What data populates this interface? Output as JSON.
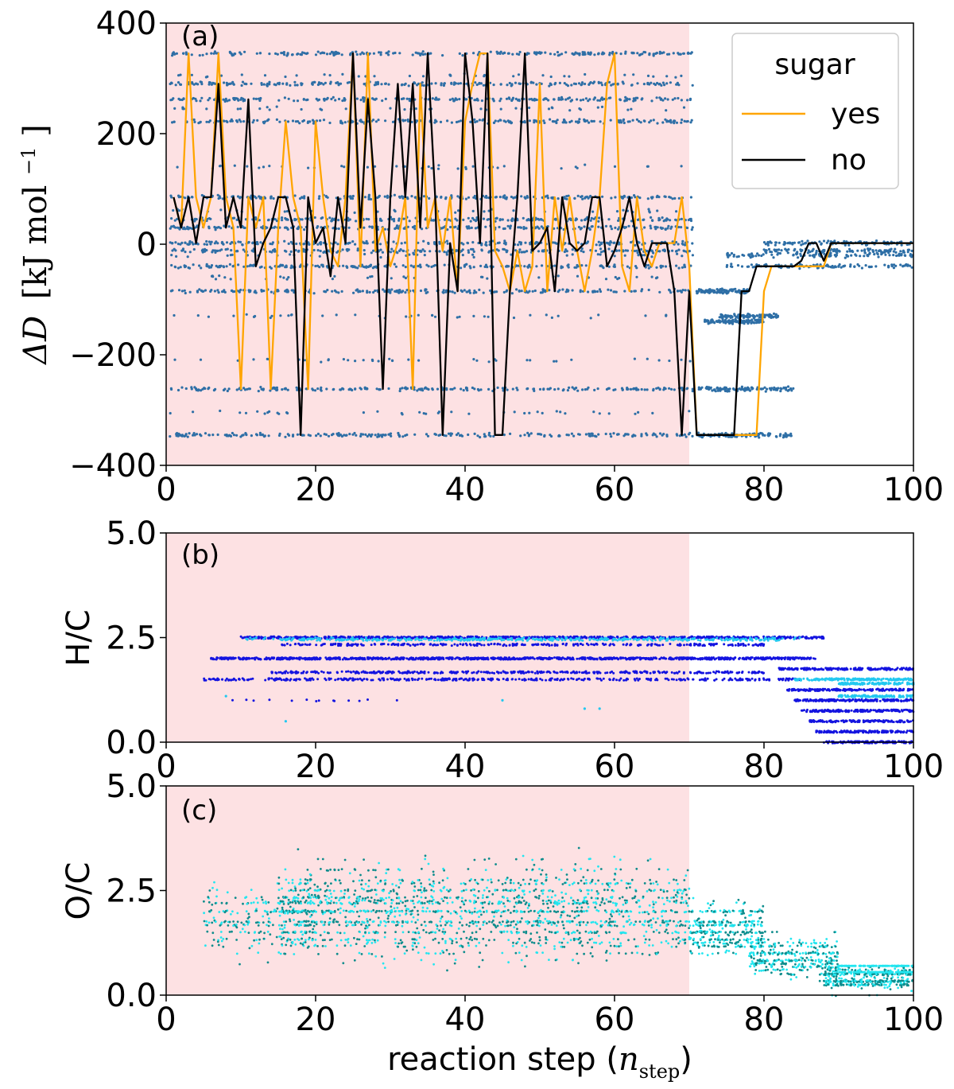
{
  "colors": {
    "shade": "#fde1e3",
    "scatter_a": "#2e6fa6",
    "yes": "#ffa500",
    "no": "#000000",
    "hc_dark": "#1414e0",
    "hc_light": "#22c8f0",
    "oc_dark": "#0e8c8c",
    "oc_light": "#22e6f0"
  },
  "chart_data": [
    {
      "panel": "(a)",
      "type": "line+scatter",
      "ylabel_main": "ΔD",
      "ylabel_units": "[kJ mol",
      "ylabel_exp": "−1",
      "ylabel_close": "]",
      "xlim": [
        0,
        100
      ],
      "ylim": [
        -400,
        400
      ],
      "x_ticks": [
        "0",
        "20",
        "40",
        "60",
        "80",
        "100"
      ],
      "y_ticks": [
        "400",
        "200",
        "0",
        "−200",
        "−400"
      ],
      "shaded_region": [
        0,
        70
      ],
      "legend": {
        "title": "sugar",
        "entries": [
          "yes",
          "no"
        ],
        "location": "upper right"
      },
      "scatter_levels_main": [
        345,
        290,
        262,
        222,
        85,
        45,
        30,
        2,
        -12,
        -40,
        -85,
        -262,
        -345
      ],
      "scatter_levels_sparse": [
        305,
        245,
        140,
        60,
        -20,
        -60,
        -130,
        -210,
        -305
      ],
      "late_scatter": [
        {
          "x0": 71,
          "x1": 84,
          "y": -345
        },
        {
          "x0": 71,
          "x1": 84,
          "y": -262
        },
        {
          "x0": 71,
          "x1": 78,
          "y": -85
        },
        {
          "x0": 72,
          "x1": 80,
          "y": -140
        },
        {
          "x0": 74,
          "x1": 82,
          "y": -130
        },
        {
          "x0": 75,
          "x1": 100,
          "y": -40
        },
        {
          "x0": 75,
          "x1": 100,
          "y": -20
        },
        {
          "x0": 80,
          "x1": 100,
          "y": 2
        },
        {
          "x0": 80,
          "x1": 100,
          "y": -12
        }
      ],
      "series": [
        {
          "name": "yes",
          "x": [
            1,
            2,
            3,
            4,
            5,
            6,
            7,
            8,
            9,
            10,
            11,
            12,
            13,
            14,
            15,
            16,
            17,
            18,
            19,
            20,
            21,
            22,
            23,
            24,
            25,
            26,
            27,
            28,
            29,
            30,
            31,
            32,
            33,
            34,
            35,
            36,
            37,
            38,
            39,
            40,
            41,
            42,
            43,
            44,
            45,
            46,
            47,
            48,
            49,
            50,
            51,
            52,
            53,
            54,
            55,
            56,
            57,
            58,
            59,
            60,
            61,
            62,
            63,
            64,
            65,
            66,
            67,
            68,
            69,
            70,
            71,
            72,
            73,
            74,
            75,
            76,
            77,
            78,
            79,
            80,
            81,
            82,
            83,
            84,
            85,
            86,
            87,
            88,
            89,
            90,
            91,
            92,
            93,
            94,
            95,
            96,
            97,
            98,
            99,
            100
          ],
          "y": [
            85,
            30,
            345,
            85,
            30,
            85,
            345,
            85,
            30,
            -262,
            85,
            30,
            85,
            -262,
            30,
            222,
            85,
            30,
            -262,
            222,
            85,
            -12,
            -40,
            85,
            345,
            -40,
            345,
            -12,
            30,
            -40,
            2,
            85,
            -262,
            290,
            30,
            85,
            -12,
            85,
            -85,
            222,
            290,
            345,
            345,
            -12,
            -40,
            -85,
            -12,
            -85,
            -40,
            290,
            -85,
            85,
            -12,
            85,
            -12,
            -85,
            -12,
            85,
            290,
            345,
            -40,
            -85,
            85,
            -12,
            -40,
            2,
            2,
            2,
            85,
            -40,
            -345,
            -345,
            -345,
            -345,
            -345,
            -345,
            -345,
            -345,
            -345,
            -85,
            -40,
            -40,
            -40,
            -40,
            -40,
            -40,
            -40,
            -40,
            2,
            2,
            2,
            2,
            2,
            2,
            2,
            2,
            2,
            2,
            2,
            2
          ]
        },
        {
          "name": "no",
          "x": [
            1,
            2,
            3,
            4,
            5,
            6,
            7,
            8,
            9,
            10,
            11,
            12,
            13,
            14,
            15,
            16,
            17,
            18,
            19,
            20,
            21,
            22,
            23,
            24,
            25,
            26,
            27,
            28,
            29,
            30,
            31,
            32,
            33,
            34,
            35,
            36,
            37,
            38,
            39,
            40,
            41,
            42,
            43,
            44,
            45,
            46,
            47,
            48,
            49,
            50,
            51,
            52,
            53,
            54,
            55,
            56,
            57,
            58,
            59,
            60,
            61,
            62,
            63,
            64,
            65,
            66,
            67,
            68,
            69,
            70,
            71,
            72,
            73,
            74,
            75,
            76,
            77,
            78,
            79,
            80,
            81,
            82,
            83,
            84,
            85,
            86,
            87,
            88,
            89,
            90,
            91,
            92,
            93,
            94,
            95,
            96,
            97,
            98,
            99,
            100
          ],
          "y": [
            85,
            30,
            85,
            2,
            85,
            85,
            290,
            30,
            85,
            30,
            262,
            -40,
            2,
            30,
            85,
            85,
            30,
            -345,
            85,
            2,
            30,
            -58,
            85,
            2,
            345,
            30,
            262,
            85,
            -262,
            85,
            290,
            85,
            290,
            30,
            345,
            85,
            -345,
            2,
            -85,
            345,
            222,
            2,
            345,
            -345,
            -345,
            -85,
            85,
            345,
            -12,
            2,
            30,
            -85,
            85,
            2,
            -12,
            2,
            85,
            85,
            -40,
            -12,
            30,
            85,
            2,
            -40,
            2,
            2,
            2,
            -85,
            -345,
            -85,
            -345,
            -345,
            -345,
            -345,
            -345,
            -345,
            -85,
            -85,
            -40,
            -40,
            -40,
            -40,
            -40,
            -40,
            -30,
            2,
            2,
            -30,
            2,
            2,
            2,
            2,
            2,
            2,
            2,
            2,
            2,
            2,
            2,
            2
          ]
        }
      ]
    },
    {
      "panel": "(b)",
      "type": "scatter",
      "ylabel": "H/C",
      "xlim": [
        0,
        100
      ],
      "ylim": [
        0,
        5
      ],
      "x_ticks": [
        "0",
        "20",
        "40",
        "60",
        "80",
        "100"
      ],
      "y_ticks": [
        "5.0",
        "2.5",
        "0.0"
      ],
      "shaded_region": [
        0,
        70
      ],
      "bands": [
        {
          "y": 2.5,
          "x0": 10,
          "x1": 88,
          "color": "dark",
          "density": 0.9
        },
        {
          "y": 2.45,
          "x0": 15,
          "x1": 82,
          "color": "light",
          "density": 0.4
        },
        {
          "y": 2.33,
          "x0": 15,
          "x1": 80,
          "color": "dark",
          "density": 0.35
        },
        {
          "y": 2.0,
          "x0": 6,
          "x1": 87,
          "color": "dark",
          "density": 1.0
        },
        {
          "y": 1.67,
          "x0": 14,
          "x1": 80,
          "color": "dark",
          "density": 0.45
        },
        {
          "y": 1.5,
          "x0": 5,
          "x1": 85,
          "color": "dark",
          "density": 0.4
        },
        {
          "y": 1.75,
          "x0": 82,
          "x1": 100,
          "color": "dark",
          "density": 0.8
        },
        {
          "y": 1.5,
          "x0": 84,
          "x1": 100,
          "color": "light",
          "density": 0.9
        },
        {
          "y": 1.4,
          "x0": 90,
          "x1": 100,
          "color": "light",
          "density": 1.0
        },
        {
          "y": 1.25,
          "x0": 83,
          "x1": 100,
          "color": "dark",
          "density": 0.9
        },
        {
          "y": 1.1,
          "x0": 90,
          "x1": 100,
          "color": "light",
          "density": 1.0
        },
        {
          "y": 1.0,
          "x0": 84,
          "x1": 100,
          "color": "dark",
          "density": 0.9
        },
        {
          "y": 0.75,
          "x0": 85,
          "x1": 100,
          "color": "dark",
          "density": 0.9
        },
        {
          "y": 0.5,
          "x0": 86,
          "x1": 100,
          "color": "dark",
          "density": 0.9
        },
        {
          "y": 0.25,
          "x0": 87,
          "x1": 100,
          "color": "dark",
          "density": 0.9
        },
        {
          "y": 0.0,
          "x0": 88,
          "x1": 100,
          "color": "dark",
          "density": 0.9
        },
        {
          "y": 1.0,
          "x0": 8,
          "x1": 32,
          "color": "dark",
          "density": 0.05
        }
      ]
    },
    {
      "panel": "(c)",
      "type": "scatter",
      "ylabel": "O/C",
      "xlabel": "reaction step (",
      "xlabel_var": "n",
      "xlabel_sub": "step",
      "xlabel_close": ")",
      "xlim": [
        0,
        100
      ],
      "ylim": [
        0,
        5
      ],
      "x_ticks": [
        "0",
        "20",
        "40",
        "60",
        "80",
        "100"
      ],
      "y_ticks": [
        "5.0",
        "2.5",
        "0.0"
      ],
      "shaded_region": [
        0,
        70
      ],
      "cloud": [
        {
          "x0": 5,
          "x1": 20,
          "y0": 0.7,
          "y1": 2.9,
          "count": 250
        },
        {
          "x0": 15,
          "x1": 70,
          "y0": 0.4,
          "y1": 3.6,
          "count": 1700
        },
        {
          "x0": 70,
          "x1": 80,
          "y0": 0.7,
          "y1": 2.5,
          "count": 350
        },
        {
          "x0": 78,
          "x1": 90,
          "y0": 0.2,
          "y1": 1.6,
          "count": 350
        },
        {
          "x0": 88,
          "x1": 100,
          "y0": 0.0,
          "y1": 0.8,
          "count": 420
        }
      ]
    }
  ]
}
